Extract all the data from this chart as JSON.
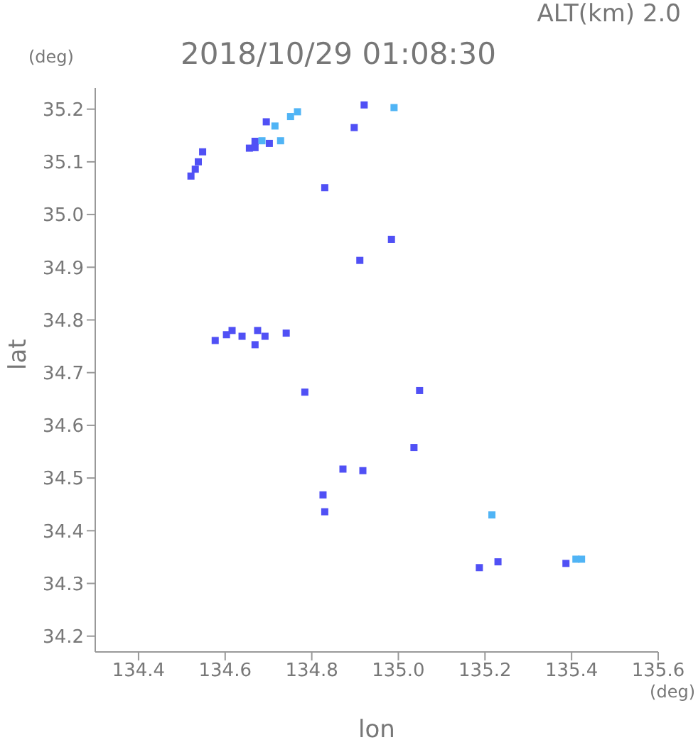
{
  "chart_data": {
    "type": "scatter",
    "title": "2018/10/29 01:08:30",
    "subtitle": "ALT(km) 2.0",
    "xlabel": "lon",
    "ylabel": "lat",
    "annotations": [
      "(deg)",
      "(deg)"
    ],
    "xlim": [
      134.3,
      135.6
    ],
    "ylim": [
      34.17,
      35.24
    ],
    "xticks": [
      134.4,
      134.6,
      134.8,
      {
        "value": 135,
        "label": "135.0"
      },
      135.2,
      135.4,
      135.6
    ],
    "yticks": [
      {
        "value": 34.2,
        "label": "34.2"
      },
      34.3,
      34.4,
      34.5,
      34.6,
      34.7,
      34.8,
      34.9,
      {
        "value": 35,
        "label": "35.0"
      },
      35.1,
      35.2
    ],
    "marker": "square",
    "grid": false,
    "legend": false,
    "series": [
      {
        "color": "#5050f5",
        "x": [
          134.521,
          134.538,
          134.548,
          134.531,
          134.656,
          134.669,
          134.702,
          134.695,
          134.669,
          134.921,
          134.898,
          134.83,
          134.984,
          134.911,
          134.577,
          134.616,
          134.603,
          134.675,
          134.692,
          134.669,
          134.639,
          134.741,
          134.784,
          135.049,
          135.036,
          134.872,
          134.918,
          134.826,
          134.83,
          135.187,
          135.23,
          135.387
        ],
        "values": [
          35.073,
          35.1,
          35.119,
          35.086,
          35.126,
          35.139,
          35.135,
          35.176,
          35.127,
          35.208,
          35.165,
          35.051,
          34.953,
          34.913,
          34.761,
          34.78,
          34.772,
          34.78,
          34.769,
          34.753,
          34.769,
          34.775,
          34.663,
          34.666,
          34.558,
          34.517,
          34.514,
          34.468,
          34.436,
          34.33,
          34.341,
          34.338
        ]
      },
      {
        "color": "#50b4f5",
        "x": [
          134.715,
          134.751,
          134.767,
          134.685,
          134.728,
          134.99,
          135.216,
          135.423,
          135.41
        ],
        "values": [
          35.168,
          35.186,
          35.195,
          35.14,
          35.14,
          35.203,
          34.43,
          34.346,
          34.346
        ]
      }
    ]
  }
}
